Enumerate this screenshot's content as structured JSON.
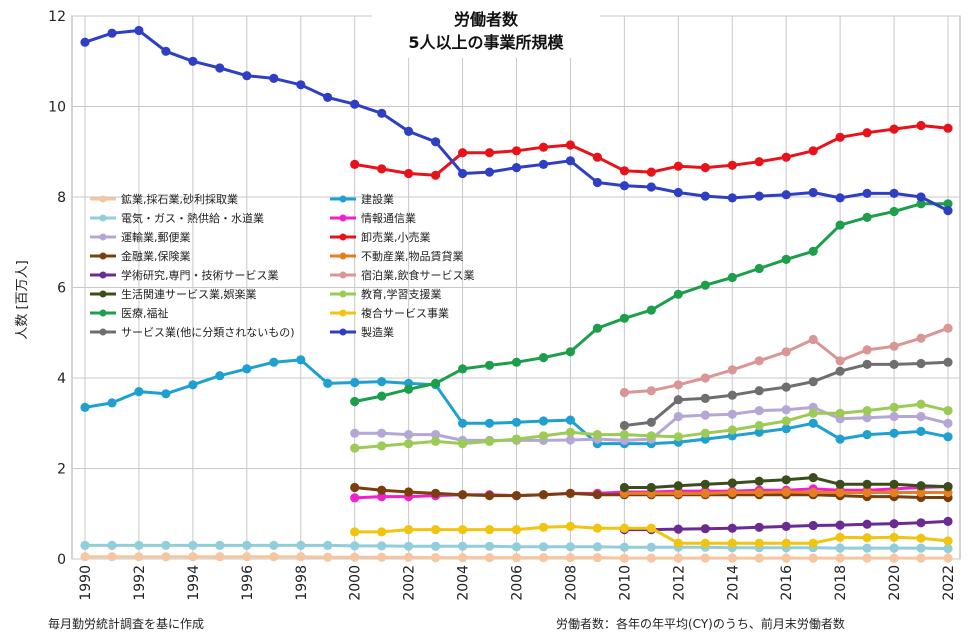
{
  "chart_data": {
    "type": "line",
    "title_line1": "労働者数",
    "title_line2": "5人以上の事業所規模",
    "xlabel": "",
    "ylabel": "人数 [百万人]",
    "xlim": [
      1990,
      2022
    ],
    "ylim": [
      0,
      12
    ],
    "xticks": [
      "1990",
      "1992",
      "1994",
      "1996",
      "1998",
      "2000",
      "2002",
      "2004",
      "2006",
      "2008",
      "2010",
      "2012",
      "2014",
      "2016",
      "2018",
      "2020",
      "2022"
    ],
    "yticks": [
      "0",
      "2",
      "4",
      "6",
      "8",
      "10",
      "12"
    ],
    "grid": true,
    "legend_position": "left-middle",
    "note_left": "毎月勤労統計調査を基に作成",
    "note_right": "労働者数：各年の年平均(CY)のうち、前月末労働者数",
    "series": [
      {
        "name": "鉱業,採石業,砂利採取業",
        "color": "#f5c6a0",
        "x": [
          1990,
          1991,
          1992,
          1993,
          1994,
          1995,
          1996,
          1997,
          1998,
          1999,
          2000,
          2001,
          2002,
          2003,
          2004,
          2005,
          2006,
          2007,
          2008,
          2009,
          2010,
          2011,
          2012,
          2013,
          2014,
          2015,
          2016,
          2017,
          2018,
          2019,
          2020,
          2021,
          2022
        ],
        "y": [
          0.05,
          0.05,
          0.05,
          0.05,
          0.05,
          0.05,
          0.05,
          0.05,
          0.05,
          0.04,
          0.04,
          0.04,
          0.04,
          0.03,
          0.03,
          0.03,
          0.03,
          0.03,
          0.03,
          0.03,
          0.02,
          0.02,
          0.02,
          0.02,
          0.02,
          0.02,
          0.02,
          0.02,
          0.02,
          0.02,
          0.02,
          0.02,
          0.02
        ]
      },
      {
        "name": "建設業",
        "color": "#1fa0d0",
        "x": [
          1990,
          1991,
          1992,
          1993,
          1994,
          1995,
          1996,
          1997,
          1998,
          1999,
          2000,
          2001,
          2002,
          2003,
          2004,
          2005,
          2006,
          2007,
          2008,
          2009,
          2010,
          2011,
          2012,
          2013,
          2014,
          2015,
          2016,
          2017,
          2018,
          2019,
          2020,
          2021,
          2022
        ],
        "y": [
          3.35,
          3.45,
          3.7,
          3.65,
          3.85,
          4.05,
          4.2,
          4.35,
          4.4,
          3.88,
          3.9,
          3.92,
          3.88,
          3.85,
          3.0,
          3.0,
          3.02,
          3.05,
          3.07,
          2.55,
          2.55,
          2.55,
          2.58,
          2.65,
          2.72,
          2.8,
          2.88,
          3.0,
          2.65,
          2.75,
          2.78,
          2.82,
          2.7
        ]
      },
      {
        "name": "電気・ガス・熱供給・水道業",
        "color": "#92cddc",
        "x": [
          1990,
          1991,
          1992,
          1993,
          1994,
          1995,
          1996,
          1997,
          1998,
          1999,
          2000,
          2001,
          2002,
          2003,
          2004,
          2005,
          2006,
          2007,
          2008,
          2009,
          2010,
          2011,
          2012,
          2013,
          2014,
          2015,
          2016,
          2017,
          2018,
          2019,
          2020,
          2021,
          2022
        ],
        "y": [
          0.3,
          0.3,
          0.3,
          0.3,
          0.3,
          0.3,
          0.3,
          0.3,
          0.3,
          0.3,
          0.29,
          0.29,
          0.28,
          0.28,
          0.28,
          0.28,
          0.27,
          0.27,
          0.27,
          0.27,
          0.26,
          0.26,
          0.26,
          0.26,
          0.25,
          0.25,
          0.25,
          0.25,
          0.24,
          0.24,
          0.24,
          0.24,
          0.23
        ]
      },
      {
        "name": "情報通信業",
        "color": "#ee22c8",
        "x": [
          2000,
          2001,
          2002,
          2003,
          2004,
          2005,
          2006,
          2007,
          2008,
          2009,
          2010,
          2011,
          2012,
          2013,
          2014,
          2015,
          2016,
          2017,
          2018,
          2019,
          2020,
          2021,
          2022
        ],
        "y": [
          1.35,
          1.38,
          1.38,
          1.4,
          1.42,
          1.42,
          1.4,
          1.42,
          1.45,
          1.45,
          1.48,
          1.48,
          1.5,
          1.5,
          1.5,
          1.52,
          1.52,
          1.55,
          1.52,
          1.52,
          1.55,
          1.58,
          1.6
        ]
      },
      {
        "name": "運輸業,郵便業",
        "color": "#b4a7d6",
        "x": [
          2000,
          2001,
          2002,
          2003,
          2004,
          2005,
          2006,
          2007,
          2008,
          2009,
          2010,
          2011,
          2012,
          2013,
          2014,
          2015,
          2016,
          2017,
          2018,
          2019,
          2020,
          2021,
          2022
        ],
        "y": [
          2.78,
          2.78,
          2.75,
          2.75,
          2.62,
          2.62,
          2.62,
          2.62,
          2.63,
          2.65,
          2.62,
          2.65,
          3.15,
          3.18,
          3.2,
          3.28,
          3.3,
          3.35,
          3.1,
          3.12,
          3.15,
          3.15,
          3.0
        ]
      },
      {
        "name": "卸売業,小売業",
        "color": "#e8121b",
        "x": [
          2000,
          2001,
          2002,
          2003,
          2004,
          2005,
          2006,
          2007,
          2008,
          2009,
          2010,
          2011,
          2012,
          2013,
          2014,
          2015,
          2016,
          2017,
          2018,
          2019,
          2020,
          2021,
          2022
        ],
        "y": [
          8.72,
          8.62,
          8.52,
          8.48,
          8.98,
          8.98,
          9.02,
          9.1,
          9.15,
          8.88,
          8.58,
          8.55,
          8.68,
          8.65,
          8.7,
          8.78,
          8.88,
          9.02,
          9.32,
          9.42,
          9.5,
          9.58,
          9.52
        ]
      },
      {
        "name": "金融業,保険業",
        "color": "#7a3f0c",
        "x": [
          2000,
          2001,
          2002,
          2003,
          2004,
          2005,
          2006,
          2007,
          2008,
          2009,
          2010,
          2011,
          2012,
          2013,
          2014,
          2015,
          2016,
          2017,
          2018,
          2019,
          2020,
          2021,
          2022
        ],
        "y": [
          1.58,
          1.52,
          1.48,
          1.45,
          1.42,
          1.4,
          1.4,
          1.42,
          1.45,
          1.42,
          1.42,
          1.42,
          1.42,
          1.42,
          1.42,
          1.42,
          1.42,
          1.42,
          1.4,
          1.38,
          1.38,
          1.36,
          1.36
        ]
      },
      {
        "name": "不動産業,物品賃貸業",
        "color": "#e67e22",
        "x": [
          2010,
          2011,
          2012,
          2013,
          2014,
          2015,
          2016,
          2017,
          2018,
          2019,
          2020,
          2021,
          2022
        ],
        "y": [
          1.45,
          1.45,
          1.45,
          1.45,
          1.47,
          1.47,
          1.48,
          1.47,
          1.47,
          1.47,
          1.47,
          1.47,
          1.47
        ]
      },
      {
        "name": "学術研究,専門・技術サービス業",
        "color": "#6a2c91",
        "x": [
          2010,
          2011,
          2012,
          2013,
          2014,
          2015,
          2016,
          2017,
          2018,
          2019,
          2020,
          2021,
          2022
        ],
        "y": [
          0.65,
          0.65,
          0.66,
          0.67,
          0.68,
          0.7,
          0.72,
          0.74,
          0.75,
          0.77,
          0.78,
          0.8,
          0.83
        ]
      },
      {
        "name": "宿泊業,飲食サービス業",
        "color": "#d99694",
        "x": [
          2010,
          2011,
          2012,
          2013,
          2014,
          2015,
          2016,
          2017,
          2018,
          2019,
          2020,
          2021,
          2022
        ],
        "y": [
          3.68,
          3.72,
          3.85,
          4.0,
          4.18,
          4.38,
          4.58,
          4.85,
          4.38,
          4.62,
          4.7,
          4.88,
          5.1
        ]
      },
      {
        "name": "生活関連サービス業,娯楽業",
        "color": "#3a4d1a",
        "x": [
          2010,
          2011,
          2012,
          2013,
          2014,
          2015,
          2016,
          2017,
          2018,
          2019,
          2020,
          2021,
          2022
        ],
        "y": [
          1.58,
          1.58,
          1.62,
          1.65,
          1.68,
          1.72,
          1.75,
          1.8,
          1.65,
          1.65,
          1.65,
          1.62,
          1.6
        ]
      },
      {
        "name": "教育,学習支援業",
        "color": "#9bcb55",
        "x": [
          2000,
          2001,
          2002,
          2003,
          2004,
          2005,
          2006,
          2007,
          2008,
          2009,
          2010,
          2011,
          2012,
          2013,
          2014,
          2015,
          2016,
          2017,
          2018,
          2019,
          2020,
          2021,
          2022
        ],
        "y": [
          2.45,
          2.5,
          2.55,
          2.6,
          2.55,
          2.6,
          2.65,
          2.72,
          2.8,
          2.75,
          2.75,
          2.72,
          2.7,
          2.78,
          2.85,
          2.95,
          3.05,
          3.22,
          3.22,
          3.28,
          3.35,
          3.42,
          3.28
        ]
      },
      {
        "name": "医療,福祉",
        "color": "#1d9e4b",
        "x": [
          2000,
          2001,
          2002,
          2003,
          2004,
          2005,
          2006,
          2007,
          2008,
          2009,
          2010,
          2011,
          2012,
          2013,
          2014,
          2015,
          2016,
          2017,
          2018,
          2019,
          2020,
          2021,
          2022
        ],
        "y": [
          3.48,
          3.6,
          3.75,
          3.88,
          4.2,
          4.28,
          4.35,
          4.45,
          4.58,
          5.1,
          5.32,
          5.5,
          5.85,
          6.05,
          6.22,
          6.42,
          6.62,
          6.8,
          7.38,
          7.55,
          7.68,
          7.85,
          7.85
        ]
      },
      {
        "name": "複合サービス事業",
        "color": "#f1c40f",
        "x": [
          2000,
          2001,
          2002,
          2003,
          2004,
          2005,
          2006,
          2007,
          2008,
          2009,
          2010,
          2011,
          2012,
          2013,
          2014,
          2015,
          2016,
          2017,
          2018,
          2019,
          2020,
          2021,
          2022
        ],
        "y": [
          0.6,
          0.6,
          0.65,
          0.65,
          0.65,
          0.65,
          0.65,
          0.7,
          0.72,
          0.68,
          0.68,
          0.68,
          0.35,
          0.35,
          0.35,
          0.35,
          0.35,
          0.35,
          0.48,
          0.47,
          0.48,
          0.46,
          0.4
        ]
      },
      {
        "name": "サービス業(他に分類されないもの)",
        "color": "#6e6e6e",
        "x": [
          2010,
          2011,
          2012,
          2013,
          2014,
          2015,
          2016,
          2017,
          2018,
          2019,
          2020,
          2021,
          2022
        ],
        "y": [
          2.95,
          3.02,
          3.52,
          3.55,
          3.62,
          3.72,
          3.8,
          3.92,
          4.15,
          4.3,
          4.3,
          4.32,
          4.35
        ]
      },
      {
        "name": "製造業",
        "color": "#2f3fc4",
        "x": [
          1990,
          1991,
          1992,
          1993,
          1994,
          1995,
          1996,
          1997,
          1998,
          1999,
          2000,
          2001,
          2002,
          2003,
          2004,
          2005,
          2006,
          2007,
          2008,
          2009,
          2010,
          2011,
          2012,
          2013,
          2014,
          2015,
          2016,
          2017,
          2018,
          2019,
          2020,
          2021,
          2022
        ],
        "y": [
          11.42,
          11.62,
          11.68,
          11.22,
          11.0,
          10.85,
          10.68,
          10.62,
          10.48,
          10.2,
          10.05,
          9.85,
          9.45,
          9.22,
          8.52,
          8.55,
          8.65,
          8.72,
          8.8,
          8.32,
          8.25,
          8.22,
          8.1,
          8.02,
          7.98,
          8.02,
          8.05,
          8.1,
          7.98,
          8.08,
          8.08,
          8.0,
          7.7
        ]
      }
    ]
  }
}
